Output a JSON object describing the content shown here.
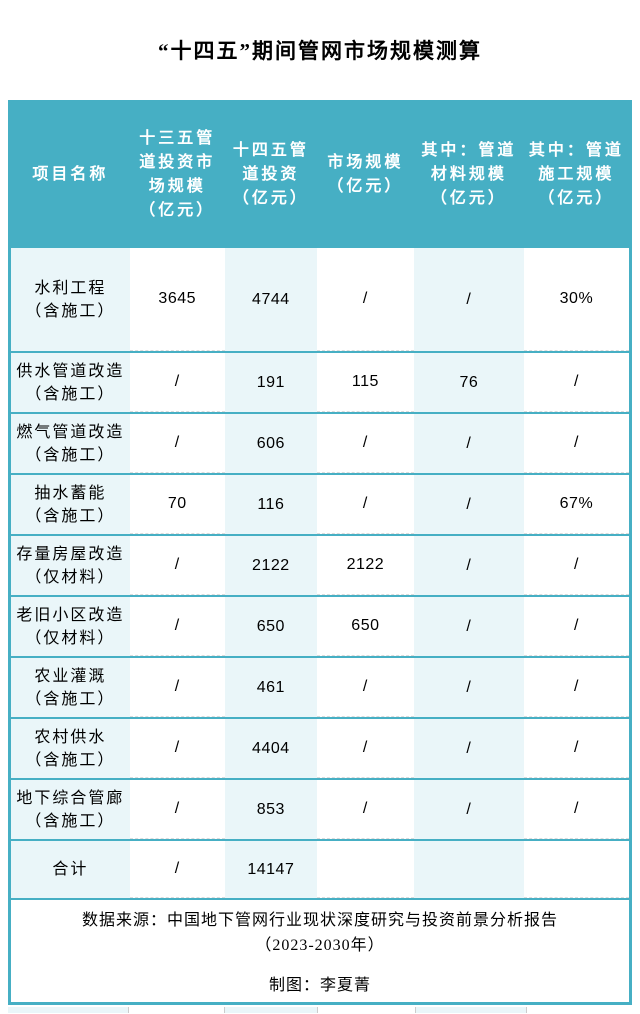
{
  "title": "“十四五”期间管网市场规模测算",
  "colors": {
    "header_bg": "#46AFC4",
    "light_cell_bg": "#EAF6F9",
    "border": "#46AFC4",
    "header_text": "#FFFFFF"
  },
  "chart_data": {
    "type": "table",
    "title": "“十四五”期间管网市场规模测算",
    "columns": [
      "项目名称",
      "十三五管\n道投资市\n场规模\n（亿元）",
      "十四五管\n道投资\n（亿元）",
      "市场规模\n（亿元）",
      "其中：管道\n材料规模\n（亿元）",
      "其中：管道\n施工规模\n（亿元）"
    ],
    "rows": [
      {
        "name": "水利工程",
        "note": "（含施工）",
        "values": [
          "3645",
          "4744",
          "/",
          "/",
          "30%"
        ]
      },
      {
        "name": "供水管道改造",
        "note": "（含施工）",
        "values": [
          "/",
          "191",
          "115",
          "76",
          "/"
        ]
      },
      {
        "name": "燃气管道改造",
        "note": "（含施工）",
        "values": [
          "/",
          "606",
          "/",
          "/",
          "/"
        ]
      },
      {
        "name": "抽水蓄能",
        "note": "（含施工）",
        "values": [
          "70",
          "116",
          "/",
          "/",
          "67%"
        ]
      },
      {
        "name": "存量房屋改造",
        "note": "（仅材料）",
        "values": [
          "/",
          "2122",
          "2122",
          "/",
          "/"
        ]
      },
      {
        "name": "老旧小区改造",
        "note": "（仅材料）",
        "values": [
          "/",
          "650",
          "650",
          "/",
          "/"
        ]
      },
      {
        "name": "农业灌溉",
        "note": "（含施工）",
        "values": [
          "/",
          "461",
          "/",
          "/",
          "/"
        ]
      },
      {
        "name": "农村供水",
        "note": "（含施工）",
        "values": [
          "/",
          "4404",
          "/",
          "/",
          "/"
        ]
      },
      {
        "name": "地下综合管廊",
        "note": "（含施工）",
        "values": [
          "/",
          "853",
          "/",
          "/",
          "/"
        ]
      },
      {
        "name": "合计",
        "note": "",
        "values": [
          "/",
          "14147",
          "",
          "",
          ""
        ]
      }
    ]
  },
  "footer": {
    "source": "数据来源：中国地下管网行业现状深度研究与投资前景分析报告\n（2023-2030年）",
    "credit": "制图：李夏菁"
  }
}
